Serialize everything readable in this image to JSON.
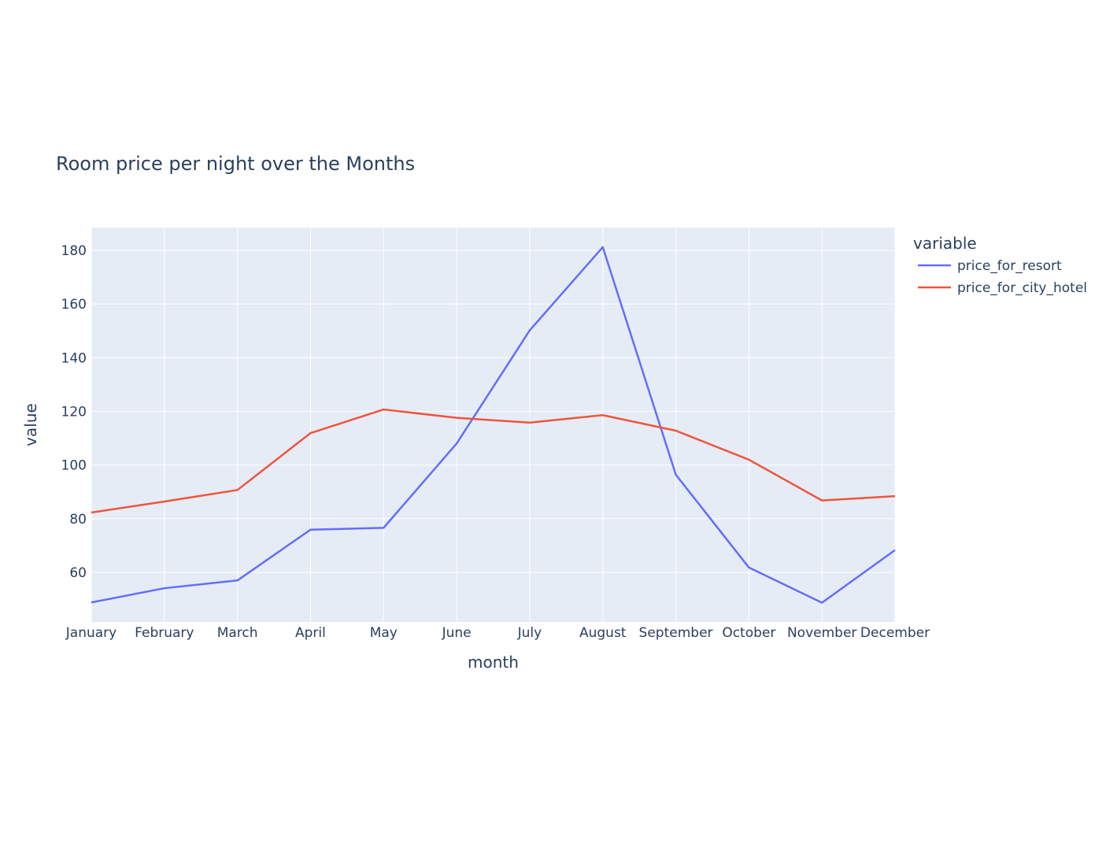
{
  "chart_data": {
    "type": "line",
    "title": "Room price per night over the Months",
    "xlabel": "month",
    "ylabel": "value",
    "categories": [
      "January",
      "February",
      "March",
      "April",
      "May",
      "June",
      "July",
      "August",
      "September",
      "October",
      "November",
      "December"
    ],
    "ylim": [
      41.5,
      188.5
    ],
    "yticks": [
      60,
      80,
      100,
      120,
      140,
      160,
      180
    ],
    "grid": true,
    "legend": {
      "title": "variable",
      "placement": "top-right"
    },
    "series": [
      {
        "name": "price_for_resort",
        "color": "#636efa",
        "values": [
          48.8,
          54.1,
          57.0,
          75.9,
          76.6,
          108.0,
          150.2,
          181.2,
          96.4,
          61.8,
          48.7,
          68.3
        ]
      },
      {
        "name": "price_for_city_hotel",
        "color": "#ef553b",
        "values": [
          82.3,
          86.4,
          90.7,
          111.9,
          120.7,
          117.6,
          115.8,
          118.6,
          112.8,
          102.0,
          86.8,
          88.4
        ]
      }
    ],
    "colors": {
      "plot_background": "#e5ecf6",
      "grid": "#ffffff",
      "text": "#2a3f5f"
    }
  }
}
